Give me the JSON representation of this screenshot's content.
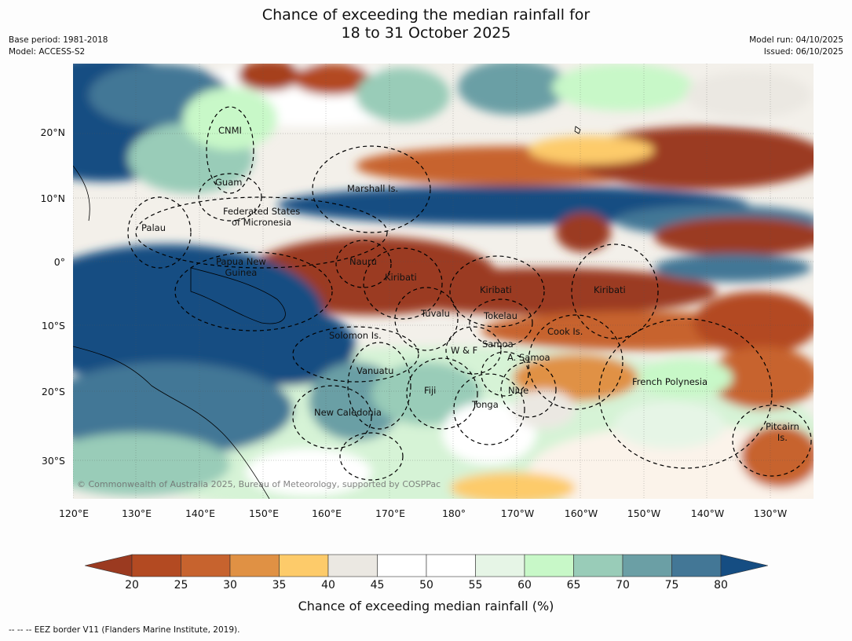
{
  "title": {
    "line1": "Chance of exceeding the median rainfall for",
    "line2": "18 to 31 October 2025"
  },
  "meta": {
    "base_period": "Base period: 1981-2018",
    "model": "Model: ACCESS-S2",
    "model_run": "Model run: 04/10/2025",
    "issued": "Issued: 06/10/2025"
  },
  "map": {
    "lat_labels": [
      "20°N",
      "10°N",
      "0°",
      "10°S",
      "20°S",
      "30°S"
    ],
    "lon_labels": [
      "120°E",
      "130°E",
      "140°E",
      "150°E",
      "160°E",
      "170°E",
      "180°",
      "170°W",
      "160°W",
      "150°W",
      "140°W",
      "130°W"
    ],
    "regions": {
      "cnmi": "CNMI",
      "guam": "Guam",
      "marshall": "Marshall Is.",
      "fsm": "Federated States\nof Micronesia",
      "palau": "Palau",
      "png": "Papua New\nGuinea",
      "nauru": "Nauru",
      "kiribati_w": "Kiribati",
      "kiribati_c": "Kiribati",
      "kiribati_e": "Kiribati",
      "tuvalu": "Tuvalu",
      "tokelau": "Tokelau",
      "cook": "Cook Is.",
      "solomon": "Solomon Is.",
      "samoa": "Samoa",
      "wf": "W & F",
      "am_samoa": "A. Samoa",
      "vanuatu": "Vanuatu",
      "fiji": "Fiji",
      "niue": "Niue",
      "tonga": "Tonga",
      "french_polynesia": "French Polynesia",
      "new_caledonia": "New Caledonia",
      "pitcairn": "Pitcairn\nIs."
    },
    "copyright": "© Commonwealth of Australia 2025, Bureau of Meteorology, supported by COSPPac"
  },
  "colorbar": {
    "ticks": [
      "20",
      "25",
      "30",
      "35",
      "40",
      "45",
      "50",
      "55",
      "60",
      "65",
      "70",
      "75",
      "80"
    ],
    "colors": [
      "#9b3a20",
      "#b34a22",
      "#c7632e",
      "#e09144",
      "#fdcb6a",
      "#ebe8e2",
      "#ffffff",
      "#ffffff",
      "#e6f5e6",
      "#c8f8c8",
      "#99ccb8",
      "#6b9fa5",
      "#437796",
      "#154d82"
    ],
    "label": "Chance of exceeding median rainfall (%)"
  },
  "footnote": "--  --  -- EEZ border V11 (Flanders Marine Institute, 2019)."
}
